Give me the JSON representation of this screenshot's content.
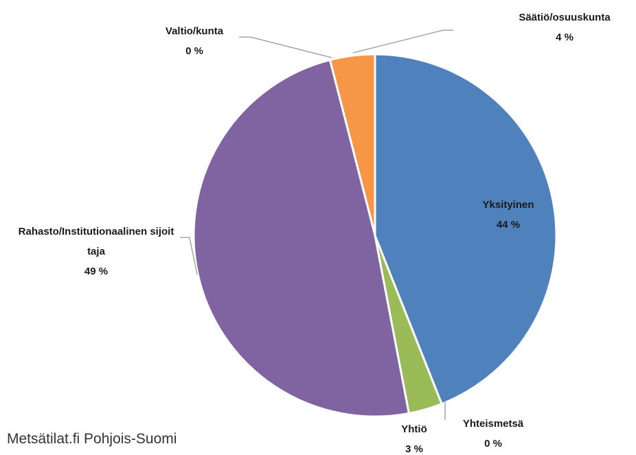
{
  "chart_data": {
    "type": "pie",
    "categories": [
      "Yksityinen",
      "Yhteismetsä",
      "Yhtiö",
      "Rahasto/Institutionaalinen sijoittaja",
      "Valtio/kunta",
      "Säätiö/osuuskunta"
    ],
    "values": [
      44,
      0,
      3,
      49,
      0,
      4
    ],
    "value_labels": [
      "44 %",
      "0 %",
      "3 %",
      "49 %",
      "0 %",
      "4 %"
    ],
    "colors": [
      "#4f81bd",
      "#4f81bd",
      "#9bbb59",
      "#8064a2",
      "#f79646",
      "#f79646"
    ],
    "source": "Metsätilat.fi Pohjois-Suomi"
  }
}
